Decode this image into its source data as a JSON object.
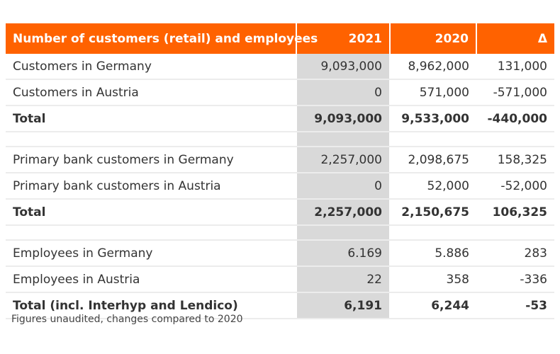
{
  "header": {
    "label": "Number of customers (retail) and employees",
    "col_2021": "2021",
    "col_2020": "2020",
    "col_delta": "Δ"
  },
  "rows": [
    {
      "label": "Customers in Germany",
      "v2021": "9,093,000",
      "v2020": "8,962,000",
      "delta": "131,000"
    },
    {
      "label": "Customers in Austria",
      "v2021": "0",
      "v2020": "571,000",
      "delta": "-571,000"
    },
    {
      "label": "Total",
      "v2021": "9,093,000",
      "v2020": "9,533,000",
      "delta": "-440,000"
    },
    {
      "label": "Primary bank customers in Germany",
      "v2021": "2,257,000",
      "v2020": "2,098,675",
      "delta": "158,325"
    },
    {
      "label": "Primary bank customers in Austria",
      "v2021": "0",
      "v2020": "52,000",
      "delta": "-52,000"
    },
    {
      "label": "Total",
      "v2021": "2,257,000",
      "v2020": "2,150,675",
      "delta": "106,325"
    },
    {
      "label": "Employees in Germany",
      "v2021": "6.169",
      "v2020": "5.886",
      "delta": "283"
    },
    {
      "label": "Employees in Austria",
      "v2021": "22",
      "v2020": "358",
      "delta": "-336"
    },
    {
      "label": "Total (incl. Interhyp and Lendico)",
      "v2021": "6,191",
      "v2020": "6,244",
      "delta": "-53"
    }
  ],
  "footnote": "Figures unaudited, changes compared to 2020",
  "colors": {
    "header_bg": "#ff6200",
    "highlight_col": "#d9d9d9"
  }
}
